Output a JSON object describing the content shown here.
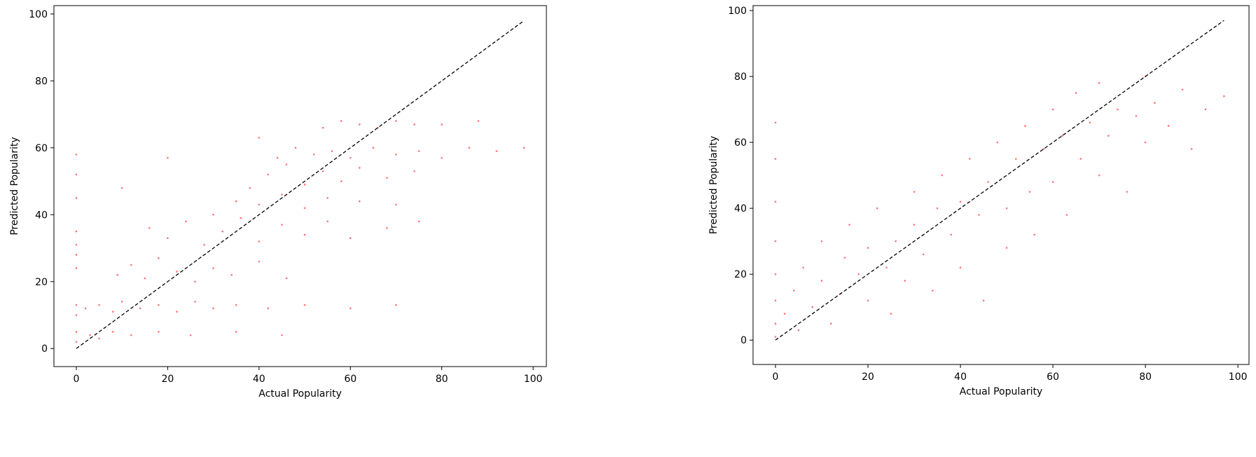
{
  "chart_data": [
    {
      "type": "scatter",
      "x_label": "Actual Popularity",
      "y_label": "Predicted Popularity",
      "color": "#ff0000",
      "xlim": [
        -4.9,
        102.9
      ],
      "ylim": [
        -5.4,
        102.5
      ],
      "xticks": [
        0,
        20,
        40,
        60,
        80,
        100
      ],
      "yticks": [
        0,
        20,
        40,
        60,
        80,
        100
      ],
      "x": [
        0,
        0,
        0,
        0,
        0,
        0,
        0,
        0,
        0,
        0,
        0,
        3,
        5,
        8,
        12,
        18,
        25,
        35,
        45,
        2,
        5,
        8,
        10,
        14,
        18,
        22,
        26,
        30,
        35,
        42,
        50,
        60,
        70,
        9,
        12,
        15,
        18,
        22,
        26,
        30,
        34,
        40,
        46,
        16,
        20,
        24,
        28,
        32,
        36,
        40,
        45,
        50,
        55,
        60,
        68,
        75,
        30,
        35,
        40,
        45,
        50,
        55,
        62,
        70,
        38,
        42,
        46,
        50,
        54,
        58,
        62,
        68,
        74,
        44,
        48,
        52,
        56,
        60,
        65,
        70,
        75,
        80,
        86,
        92,
        98,
        54,
        58,
        62,
        66,
        70,
        74,
        80,
        88,
        10,
        20,
        40
      ],
      "y": [
        2,
        5,
        10,
        13,
        24,
        28,
        31,
        35,
        45,
        52,
        58,
        4,
        3,
        5,
        4,
        5,
        4,
        5,
        4,
        12,
        13,
        11,
        14,
        12,
        13,
        11,
        14,
        12,
        13,
        12,
        13,
        12,
        13,
        22,
        25,
        21,
        27,
        23,
        20,
        24,
        22,
        26,
        21,
        36,
        33,
        38,
        31,
        35,
        39,
        32,
        37,
        34,
        38,
        33,
        36,
        38,
        40,
        44,
        43,
        46,
        42,
        45,
        44,
        43,
        48,
        52,
        55,
        49,
        53,
        50,
        54,
        51,
        53,
        57,
        60,
        58,
        59,
        57,
        60,
        58,
        59,
        57,
        60,
        59,
        60,
        66,
        68,
        67,
        66,
        68,
        67,
        67,
        68,
        48,
        57,
        63
      ],
      "reference_line": {
        "x": [
          0,
          98
        ],
        "y": [
          0,
          98
        ]
      }
    },
    {
      "type": "scatter",
      "x_label": "Actual Popularity",
      "y_label": "Predicted Popularity",
      "color": "#ff0000",
      "xlim": [
        -4.85,
        102.4
      ],
      "ylim": [
        -7.4,
        101.5
      ],
      "xticks": [
        0,
        20,
        40,
        60,
        80,
        100
      ],
      "yticks": [
        0,
        20,
        40,
        60,
        80,
        100
      ],
      "x": [
        0,
        0,
        0,
        0,
        0,
        0,
        0,
        0,
        2,
        4,
        5,
        6,
        8,
        10,
        10,
        12,
        14,
        15,
        16,
        18,
        20,
        20,
        22,
        24,
        25,
        26,
        28,
        30,
        30,
        32,
        34,
        35,
        36,
        38,
        40,
        40,
        42,
        44,
        45,
        46,
        48,
        50,
        50,
        52,
        54,
        55,
        56,
        58,
        60,
        60,
        62,
        63,
        65,
        66,
        68,
        70,
        70,
        72,
        74,
        76,
        78,
        80,
        80,
        82,
        85,
        88,
        90,
        93,
        97
      ],
      "y": [
        1,
        5,
        12,
        20,
        30,
        42,
        55,
        66,
        8,
        15,
        3,
        22,
        10,
        18,
        30,
        5,
        14,
        25,
        35,
        20,
        12,
        28,
        40,
        22,
        8,
        30,
        18,
        35,
        45,
        26,
        15,
        40,
        50,
        32,
        42,
        22,
        55,
        38,
        12,
        48,
        60,
        40,
        28,
        55,
        65,
        45,
        32,
        58,
        70,
        48,
        62,
        38,
        75,
        55,
        66,
        50,
        78,
        62,
        70,
        45,
        68,
        60,
        80,
        72,
        65,
        76,
        58,
        70,
        74
      ],
      "reference_line": {
        "x": [
          0,
          97
        ],
        "y": [
          0,
          97
        ]
      }
    }
  ]
}
